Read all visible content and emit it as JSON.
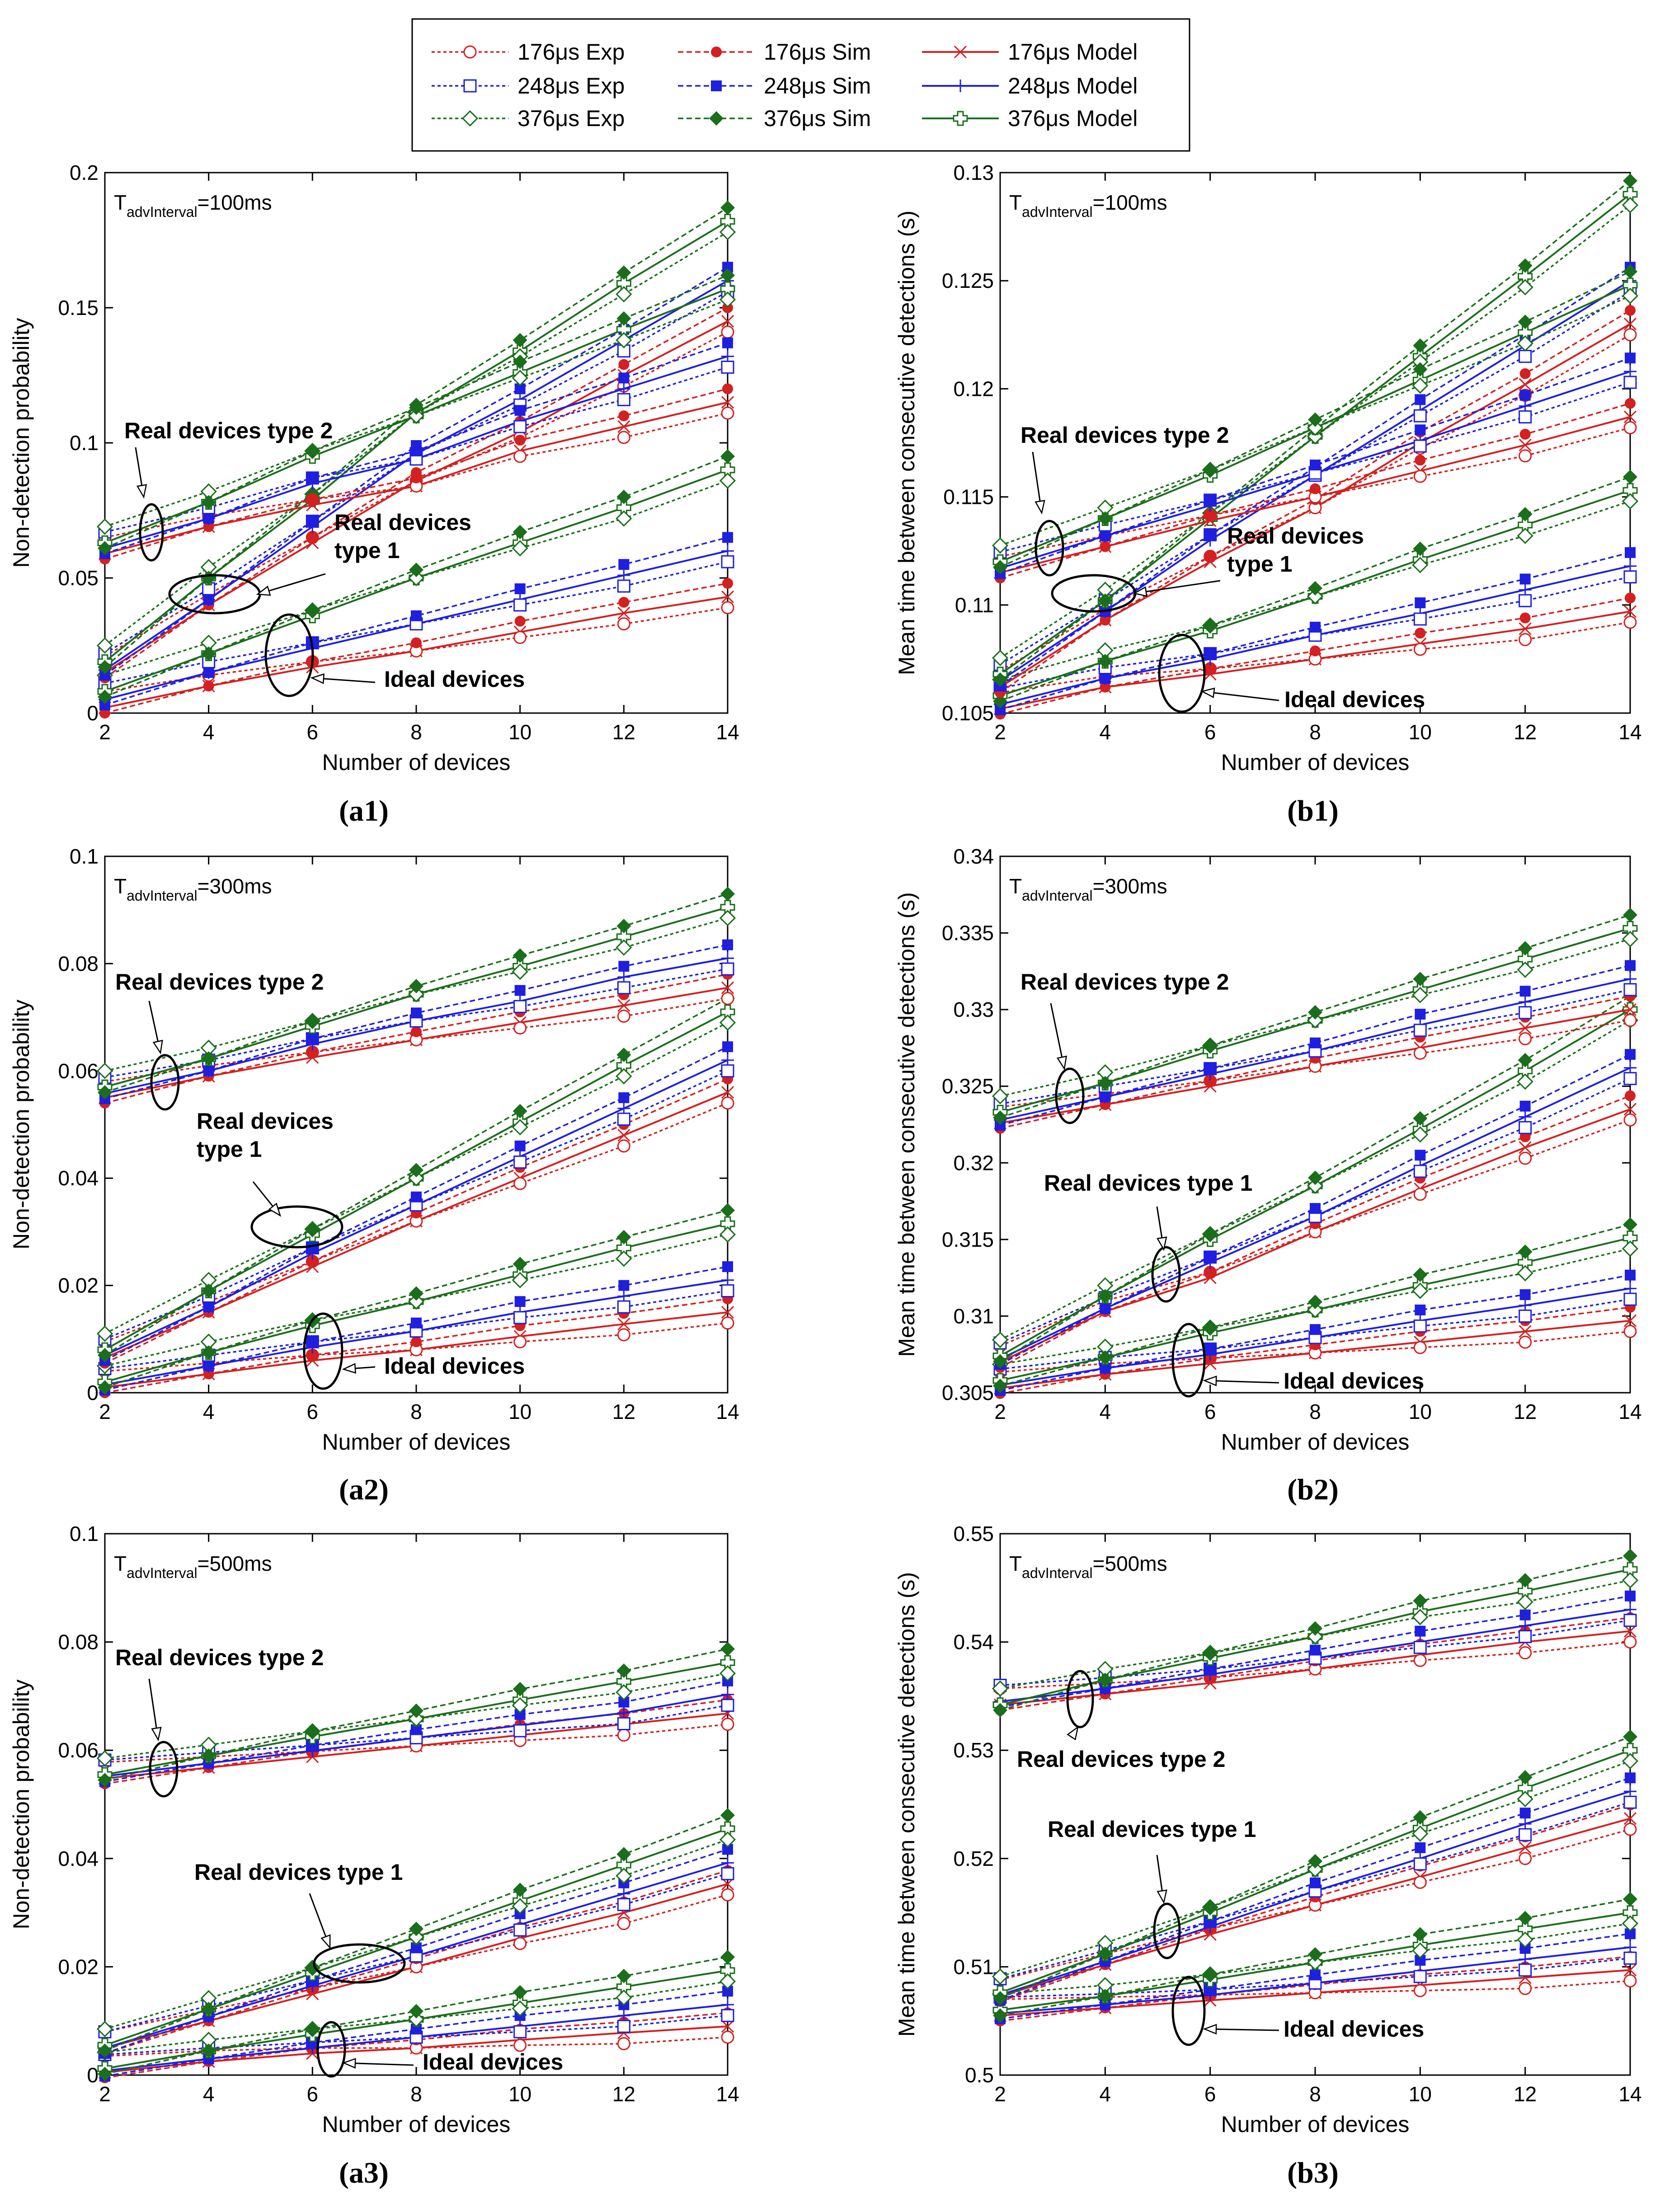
{
  "legend": {
    "entries": [
      {
        "label": "176μs Exp",
        "series": "exp",
        "group": 0
      },
      {
        "label": "176μs Sim",
        "series": "sim",
        "group": 0
      },
      {
        "label": "176μs Model",
        "series": "model",
        "group": 0
      },
      {
        "label": "248μs Exp",
        "series": "exp",
        "group": 1
      },
      {
        "label": "248μs Sim",
        "series": "sim",
        "group": 1
      },
      {
        "label": "248μs Model",
        "series": "model",
        "group": 1
      },
      {
        "label": "376μs Exp",
        "series": "exp",
        "group": 2
      },
      {
        "label": "376μs Sim",
        "series": "sim",
        "group": 2
      },
      {
        "label": "376μs Model",
        "series": "model",
        "group": 2
      }
    ]
  },
  "colors": {
    "red": "#d42020",
    "blue": "#1f1fe0",
    "green": "#1b6e1b"
  },
  "chart_data": [
    {
      "id": "a1",
      "type": "line",
      "caption": "(a1)",
      "interval_prefix": "T",
      "interval_sub": "advInterval",
      "interval_value": "=100ms",
      "xlabel": "Number of devices",
      "ylabel": "Non-detection probability",
      "xlim": [
        2,
        14
      ],
      "ylim": [
        0,
        0.2
      ],
      "x": [
        2,
        4,
        6,
        8,
        10,
        12,
        14
      ],
      "xticks": [
        2,
        4,
        6,
        8,
        10,
        12,
        14
      ],
      "yticks": [
        0,
        0.05,
        0.1,
        0.15,
        0.2
      ],
      "ytick_labels": [
        "0",
        "0.05",
        "0.1",
        "0.15",
        "0.2"
      ],
      "groups": [
        {
          "name": "Ideal devices",
          "base": [
            [
              0.002,
              0.01,
              0.017,
              0.023,
              0.03,
              0.037,
              0.043
            ],
            [
              0.005,
              0.015,
              0.024,
              0.033,
              0.042,
              0.051,
              0.06
            ],
            [
              0.008,
              0.022,
              0.036,
              0.05,
              0.063,
              0.076,
              0.09
            ]
          ]
        },
        {
          "name": "Real devices type 1",
          "base": [
            [
              0.015,
              0.04,
              0.063,
              0.086,
              0.104,
              0.125,
              0.145
            ],
            [
              0.016,
              0.042,
              0.069,
              0.096,
              0.116,
              0.138,
              0.16
            ],
            [
              0.019,
              0.05,
              0.079,
              0.111,
              0.134,
              0.159,
              0.182
            ]
          ]
        },
        {
          "name": "Real devices type 2",
          "base": [
            [
              0.059,
              0.069,
              0.077,
              0.084,
              0.097,
              0.106,
              0.115
            ],
            [
              0.061,
              0.072,
              0.085,
              0.094,
              0.108,
              0.12,
              0.132
            ],
            [
              0.063,
              0.078,
              0.095,
              0.11,
              0.126,
              0.142,
              0.157
            ]
          ]
        }
      ],
      "annotations": [
        {
          "text": "Real devices type 2",
          "lines": [
            "Real devices type 2"
          ]
        },
        {
          "text": "Real devices type 1",
          "lines": [
            "Real devices",
            "type 1"
          ]
        },
        {
          "text": "Ideal devices",
          "lines": [
            "Ideal devices"
          ]
        }
      ]
    },
    {
      "id": "b1",
      "type": "line",
      "caption": "(b1)",
      "interval_prefix": "T",
      "interval_sub": "advInterval",
      "interval_value": "=100ms",
      "xlabel": "Number of devices",
      "ylabel": "Mean time between consecutive detections (s)",
      "xlim": [
        2,
        14
      ],
      "ylim": [
        0.105,
        0.13
      ],
      "x": [
        2,
        4,
        6,
        8,
        10,
        12,
        14
      ],
      "xticks": [
        2,
        4,
        6,
        8,
        10,
        12,
        14
      ],
      "yticks": [
        0.105,
        0.11,
        0.115,
        0.12,
        0.125,
        0.13
      ],
      "ytick_labels": [
        "0.105",
        "0.11",
        "0.115",
        "0.12",
        "0.125",
        "0.13"
      ],
      "groups": [
        {
          "name": "Ideal devices",
          "base": [
            [
              0.1052,
              0.1062,
              0.1068,
              0.1075,
              0.1082,
              0.1089,
              0.1097
            ],
            [
              0.1054,
              0.1066,
              0.1075,
              0.1086,
              0.1096,
              0.1107,
              0.1118
            ],
            [
              0.1058,
              0.1074,
              0.1088,
              0.1104,
              0.1121,
              0.1137,
              0.1153
            ]
          ]
        },
        {
          "name": "Real devices type 1",
          "base": [
            [
              0.1062,
              0.1093,
              0.112,
              0.1145,
              0.1175,
              0.1202,
              0.123
            ],
            [
              0.1065,
              0.1097,
              0.113,
              0.116,
              0.119,
              0.122,
              0.125
            ],
            [
              0.1068,
              0.1102,
              0.114,
              0.1178,
              0.1215,
              0.1252,
              0.129
            ]
          ]
        },
        {
          "name": "Real devices type 2",
          "base": [
            [
              0.1115,
              0.1127,
              0.1139,
              0.115,
              0.1162,
              0.1174,
              0.1187
            ],
            [
              0.1117,
              0.1132,
              0.1146,
              0.1161,
              0.1176,
              0.1192,
              0.1208
            ],
            [
              0.112,
              0.114,
              0.116,
              0.1182,
              0.1204,
              0.1226,
              0.1248
            ]
          ]
        }
      ],
      "annotations": [
        {
          "text": "Real devices type 2",
          "lines": [
            "Real devices type 2"
          ]
        },
        {
          "text": "Real devices type 1",
          "lines": [
            "Real devices",
            "type 1"
          ]
        },
        {
          "text": "Ideal devices",
          "lines": [
            "Ideal devices"
          ]
        }
      ]
    },
    {
      "id": "a2",
      "type": "line",
      "caption": "(a2)",
      "interval_prefix": "T",
      "interval_sub": "advInterval",
      "interval_value": "=300ms",
      "xlabel": "Number of devices",
      "ylabel": "Non-detection probability",
      "xlim": [
        2,
        14
      ],
      "ylim": [
        0,
        0.1
      ],
      "x": [
        2,
        4,
        6,
        8,
        10,
        12,
        14
      ],
      "xticks": [
        2,
        4,
        6,
        8,
        10,
        12,
        14
      ],
      "yticks": [
        0,
        0.02,
        0.04,
        0.06,
        0.08,
        0.1
      ],
      "ytick_labels": [
        "0",
        "0.02",
        "0.04",
        "0.06",
        "0.08",
        "0.1"
      ],
      "groups": [
        {
          "name": "Ideal devices",
          "base": [
            [
              0.001,
              0.0035,
              0.006,
              0.008,
              0.0105,
              0.0128,
              0.015
            ],
            [
              0.0015,
              0.005,
              0.0085,
              0.0115,
              0.015,
              0.018,
              0.021
            ],
            [
              0.002,
              0.0075,
              0.0125,
              0.017,
              0.022,
              0.027,
              0.0315
            ]
          ]
        },
        {
          "name": "Real devices type 1",
          "base": [
            [
              0.0065,
              0.015,
              0.0235,
              0.032,
              0.04,
              0.048,
              0.056
            ],
            [
              0.007,
              0.016,
              0.026,
              0.035,
              0.044,
              0.053,
              0.062
            ],
            [
              0.008,
              0.019,
              0.0295,
              0.04,
              0.0505,
              0.061,
              0.071
            ]
          ]
        },
        {
          "name": "Real devices type 2",
          "base": [
            [
              0.055,
              0.059,
              0.0625,
              0.0658,
              0.069,
              0.0722,
              0.0755
            ],
            [
              0.0558,
              0.06,
              0.065,
              0.0693,
              0.073,
              0.0775,
              0.081
            ],
            [
              0.057,
              0.0623,
              0.0683,
              0.0743,
              0.0795,
              0.085,
              0.0905
            ]
          ]
        }
      ],
      "annotations": [
        {
          "text": "Real devices type 2",
          "lines": [
            "Real devices type 2"
          ]
        },
        {
          "text": "Real devices type 1",
          "lines": [
            "Real devices",
            "type 1"
          ]
        },
        {
          "text": "Ideal devices",
          "lines": [
            "Ideal devices"
          ]
        }
      ]
    },
    {
      "id": "b2",
      "type": "line",
      "caption": "(b2)",
      "interval_prefix": "T",
      "interval_sub": "advInterval",
      "interval_value": "=300ms",
      "xlabel": "Number of devices",
      "ylabel": "Mean time between consecutive detections (s)",
      "xlim": [
        2,
        14
      ],
      "ylim": [
        0.305,
        0.34
      ],
      "x": [
        2,
        4,
        6,
        8,
        10,
        12,
        14
      ],
      "xticks": [
        2,
        4,
        6,
        8,
        10,
        12,
        14
      ],
      "yticks": [
        0.305,
        0.31,
        0.315,
        0.32,
        0.325,
        0.33,
        0.335,
        0.34
      ],
      "ytick_labels": [
        "0.305",
        "0.31",
        "0.315",
        "0.32",
        "0.325",
        "0.33",
        "0.335",
        "0.34"
      ],
      "groups": [
        {
          "name": "Ideal devices",
          "base": [
            [
              0.3053,
              0.3062,
              0.3069,
              0.3076,
              0.3083,
              0.309,
              0.3097
            ],
            [
              0.3055,
              0.3066,
              0.3075,
              0.3086,
              0.3097,
              0.3107,
              0.3118
            ],
            [
              0.3058,
              0.3073,
              0.3089,
              0.3104,
              0.312,
              0.3135,
              0.3151
            ]
          ]
        },
        {
          "name": "Real devices type 1",
          "base": [
            [
              0.307,
              0.3103,
              0.3125,
              0.3155,
              0.3183,
              0.321,
              0.3235
            ],
            [
              0.3072,
              0.3105,
              0.3135,
              0.3165,
              0.3198,
              0.323,
              0.3262
            ],
            [
              0.3074,
              0.3113,
              0.315,
              0.3185,
              0.3222,
              0.326,
              0.33
            ]
          ]
        },
        {
          "name": "Real devices type 2",
          "base": [
            [
              0.3226,
              0.3238,
              0.325,
              0.3263,
              0.3275,
              0.3288,
              0.33
            ],
            [
              0.3228,
              0.3243,
              0.3258,
              0.3273,
              0.329,
              0.3305,
              0.332
            ],
            [
              0.3233,
              0.3252,
              0.3273,
              0.3293,
              0.3313,
              0.3333,
              0.3353
            ]
          ]
        }
      ],
      "annotations": [
        {
          "text": "Real devices type 2",
          "lines": [
            "Real devices type 2"
          ]
        },
        {
          "text": "Real devices type 1",
          "lines": [
            "Real devices type 1"
          ]
        },
        {
          "text": "Ideal devices",
          "lines": [
            "Ideal devices"
          ]
        }
      ]
    },
    {
      "id": "a3",
      "type": "line",
      "caption": "(a3)",
      "interval_prefix": "T",
      "interval_sub": "advInterval",
      "interval_value": "=500ms",
      "xlabel": "Number of devices",
      "ylabel": "Non-detection probability",
      "xlim": [
        2,
        14
      ],
      "ylim": [
        0,
        0.1
      ],
      "x": [
        2,
        4,
        6,
        8,
        10,
        12,
        14
      ],
      "xticks": [
        2,
        4,
        6,
        8,
        10,
        12,
        14
      ],
      "yticks": [
        0,
        0.02,
        0.04,
        0.06,
        0.08,
        0.1
      ],
      "ytick_labels": [
        "0",
        "0.02",
        "0.04",
        "0.06",
        "0.08",
        "0.1"
      ],
      "groups": [
        {
          "name": "Ideal devices",
          "base": [
            [
              0.0005,
              0.0025,
              0.004,
              0.005,
              0.0065,
              0.0078,
              0.009
            ],
            [
              0.0008,
              0.003,
              0.005,
              0.007,
              0.009,
              0.011,
              0.013
            ],
            [
              0.0012,
              0.0045,
              0.0075,
              0.0103,
              0.0133,
              0.0163,
              0.0193
            ]
          ]
        },
        {
          "name": "Real devices type 1",
          "base": [
            [
              0.005,
              0.01,
              0.015,
              0.02,
              0.0253,
              0.03,
              0.0353
            ],
            [
              0.005,
              0.0108,
              0.0165,
              0.022,
              0.0278,
              0.0335,
              0.0392
            ],
            [
              0.0055,
              0.0122,
              0.0188,
              0.0255,
              0.0322,
              0.0388,
              0.0455
            ]
          ]
        },
        {
          "name": "Real devices type 2",
          "base": [
            [
              0.0548,
              0.0568,
              0.0588,
              0.0608,
              0.0628,
              0.0648,
              0.0668
            ],
            [
              0.0552,
              0.0576,
              0.0599,
              0.0623,
              0.0646,
              0.0669,
              0.0703
            ],
            [
              0.0555,
              0.059,
              0.0625,
              0.0658,
              0.0693,
              0.0727,
              0.0762
            ]
          ]
        }
      ],
      "annotations": [
        {
          "text": "Real devices type 2",
          "lines": [
            "Real devices type 2"
          ]
        },
        {
          "text": "Real devices type 1",
          "lines": [
            "Real devices type 1"
          ]
        },
        {
          "text": "Ideal devices",
          "lines": [
            "Ideal devices"
          ]
        }
      ]
    },
    {
      "id": "b3",
      "type": "line",
      "caption": "(b3)",
      "interval_prefix": "T",
      "interval_sub": "advInterval",
      "interval_value": "=500ms",
      "xlabel": "Number of devices",
      "ylabel": "Mean time between consecutive detections (s)",
      "xlim": [
        2,
        14
      ],
      "ylim": [
        0.5,
        0.55
      ],
      "x": [
        2,
        4,
        6,
        8,
        10,
        12,
        14
      ],
      "xticks": [
        2,
        4,
        6,
        8,
        10,
        12,
        14
      ],
      "yticks": [
        0.5,
        0.51,
        0.52,
        0.53,
        0.54,
        0.55
      ],
      "ytick_labels": [
        "0.5",
        "0.51",
        "0.52",
        "0.53",
        "0.54",
        "0.55"
      ],
      "groups": [
        {
          "name": "Ideal devices",
          "base": [
            [
              0.5055,
              0.5062,
              0.5069,
              0.5076,
              0.5083,
              0.509,
              0.5097
            ],
            [
              0.5057,
              0.5065,
              0.5074,
              0.5085,
              0.5096,
              0.5107,
              0.5118
            ],
            [
              0.506,
              0.5073,
              0.5088,
              0.5104,
              0.512,
              0.5135,
              0.515
            ]
          ]
        },
        {
          "name": "Real devices type 1",
          "base": [
            [
              0.5073,
              0.5102,
              0.513,
              0.5157,
              0.5183,
              0.521,
              0.5237
            ],
            [
              0.5074,
              0.5105,
              0.5137,
              0.517,
              0.52,
              0.5232,
              0.5262
            ],
            [
              0.5076,
              0.5112,
              0.515,
              0.519,
              0.5228,
              0.5265,
              0.53
            ]
          ]
        },
        {
          "name": "Real devices type 2",
          "base": [
            [
              0.5342,
              0.5352,
              0.5362,
              0.5375,
              0.5388,
              0.54,
              0.541
            ],
            [
              0.5345,
              0.5357,
              0.537,
              0.5385,
              0.54,
              0.5415,
              0.543
            ],
            [
              0.5342,
              0.5365,
              0.5385,
              0.5405,
              0.5428,
              0.5447,
              0.5467
            ]
          ]
        }
      ],
      "annotations": [
        {
          "text": "Real devices type 2",
          "lines": [
            "Real devices type 2"
          ]
        },
        {
          "text": "Real devices type 1",
          "lines": [
            "Real devices type 1"
          ]
        },
        {
          "text": "Ideal devices",
          "lines": [
            "Ideal devices"
          ]
        }
      ]
    }
  ]
}
